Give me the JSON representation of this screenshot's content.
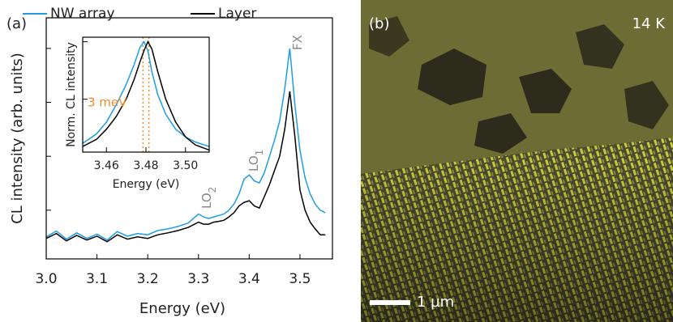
{
  "chart_data": [
    {
      "type": "line",
      "panel_label": "(a)",
      "xlabel": "Energy (eV)",
      "ylabel": "CL intensity (arb. units)",
      "x": [
        3.0,
        3.02,
        3.04,
        3.06,
        3.08,
        3.1,
        3.12,
        3.14,
        3.16,
        3.18,
        3.2,
        3.22,
        3.24,
        3.26,
        3.28,
        3.3,
        3.31,
        3.32,
        3.33,
        3.34,
        3.35,
        3.36,
        3.37,
        3.38,
        3.39,
        3.4,
        3.41,
        3.42,
        3.43,
        3.44,
        3.45,
        3.46,
        3.47,
        3.48,
        3.49,
        3.5,
        3.51,
        3.52,
        3.53,
        3.54,
        3.55
      ],
      "series": [
        {
          "name": "NW array",
          "color": "#1f9de0",
          "values": [
            3.2,
            4.1,
            2.9,
            3.8,
            3.0,
            3.6,
            2.8,
            4.0,
            3.3,
            3.7,
            3.5,
            4.2,
            4.5,
            5.0,
            5.8,
            8.5,
            7.5,
            7.0,
            7.5,
            8,
            8.5,
            10,
            13,
            20,
            38,
            45,
            35,
            32,
            50,
            100,
            200,
            450,
            1800,
            10000,
            900,
            130,
            40,
            20,
            13,
            10,
            9
          ]
        },
        {
          "name": "Layer",
          "color": "#000000",
          "values": [
            3.0,
            3.7,
            2.7,
            3.4,
            2.8,
            3.3,
            2.6,
            3.5,
            2.9,
            3.2,
            3.0,
            3.5,
            3.8,
            4.2,
            4.8,
            6.0,
            5.5,
            5.5,
            6,
            6.2,
            6.5,
            7.5,
            9,
            12,
            14,
            15,
            12,
            11,
            18,
            30,
            55,
            100,
            320,
            1600,
            230,
            24,
            10,
            6,
            4.5,
            3.5,
            3.5
          ]
        }
      ],
      "xlim": [
        3.0,
        3.564
      ],
      "xticks": [
        {
          "value": 3.0,
          "label": "3.0"
        },
        3.1,
        3.2,
        3.3,
        3.4,
        3.5
      ],
      "ylim": [
        1.25,
        37000
      ],
      "yticks": [
        10,
        100,
        1000,
        10000
      ],
      "ylog": true,
      "annotations": [
        {
          "text": "FX"
        },
        {
          "text": "LO",
          "sub": "1"
        },
        {
          "text": "LO",
          "sub": "2"
        }
      ]
    },
    {
      "type": "line",
      "xlabel": "Energy (eV)",
      "ylabel": "Norm. CL intensity",
      "x": [
        3.448,
        3.455,
        3.46,
        3.465,
        3.47,
        3.474,
        3.477,
        3.479,
        3.481,
        3.483,
        3.486,
        3.49,
        3.495,
        3.5,
        3.505,
        3.512
      ],
      "series": [
        {
          "name": "NW array",
          "color": "#1f9de0",
          "values": [
            0.017,
            0.025,
            0.04,
            0.08,
            0.18,
            0.4,
            0.8,
            1.0,
            0.7,
            0.3,
            0.12,
            0.055,
            0.03,
            0.022,
            0.018,
            0.015
          ]
        },
        {
          "name": "Layer",
          "color": "#000000",
          "values": [
            0.015,
            0.02,
            0.03,
            0.05,
            0.1,
            0.22,
            0.45,
            0.7,
            1.0,
            0.75,
            0.3,
            0.1,
            0.04,
            0.022,
            0.016,
            0.013
          ]
        }
      ],
      "xlim": [
        3.448,
        3.512
      ],
      "xticks": [
        3.46,
        3.48,
        {
          "value": 3.5,
          "label": "3.50"
        }
      ],
      "ylim": [
        0.012,
        1.2
      ],
      "yticks": [
        0.1,
        1
      ],
      "ylog": true,
      "vlines": [
        3.4785,
        3.4815
      ],
      "vline_color": "#f28c28",
      "annotation": "3 meV"
    }
  ],
  "panel_b": {
    "label": "(b)",
    "temperature": "14 K",
    "scale_bar": "1 µm"
  }
}
